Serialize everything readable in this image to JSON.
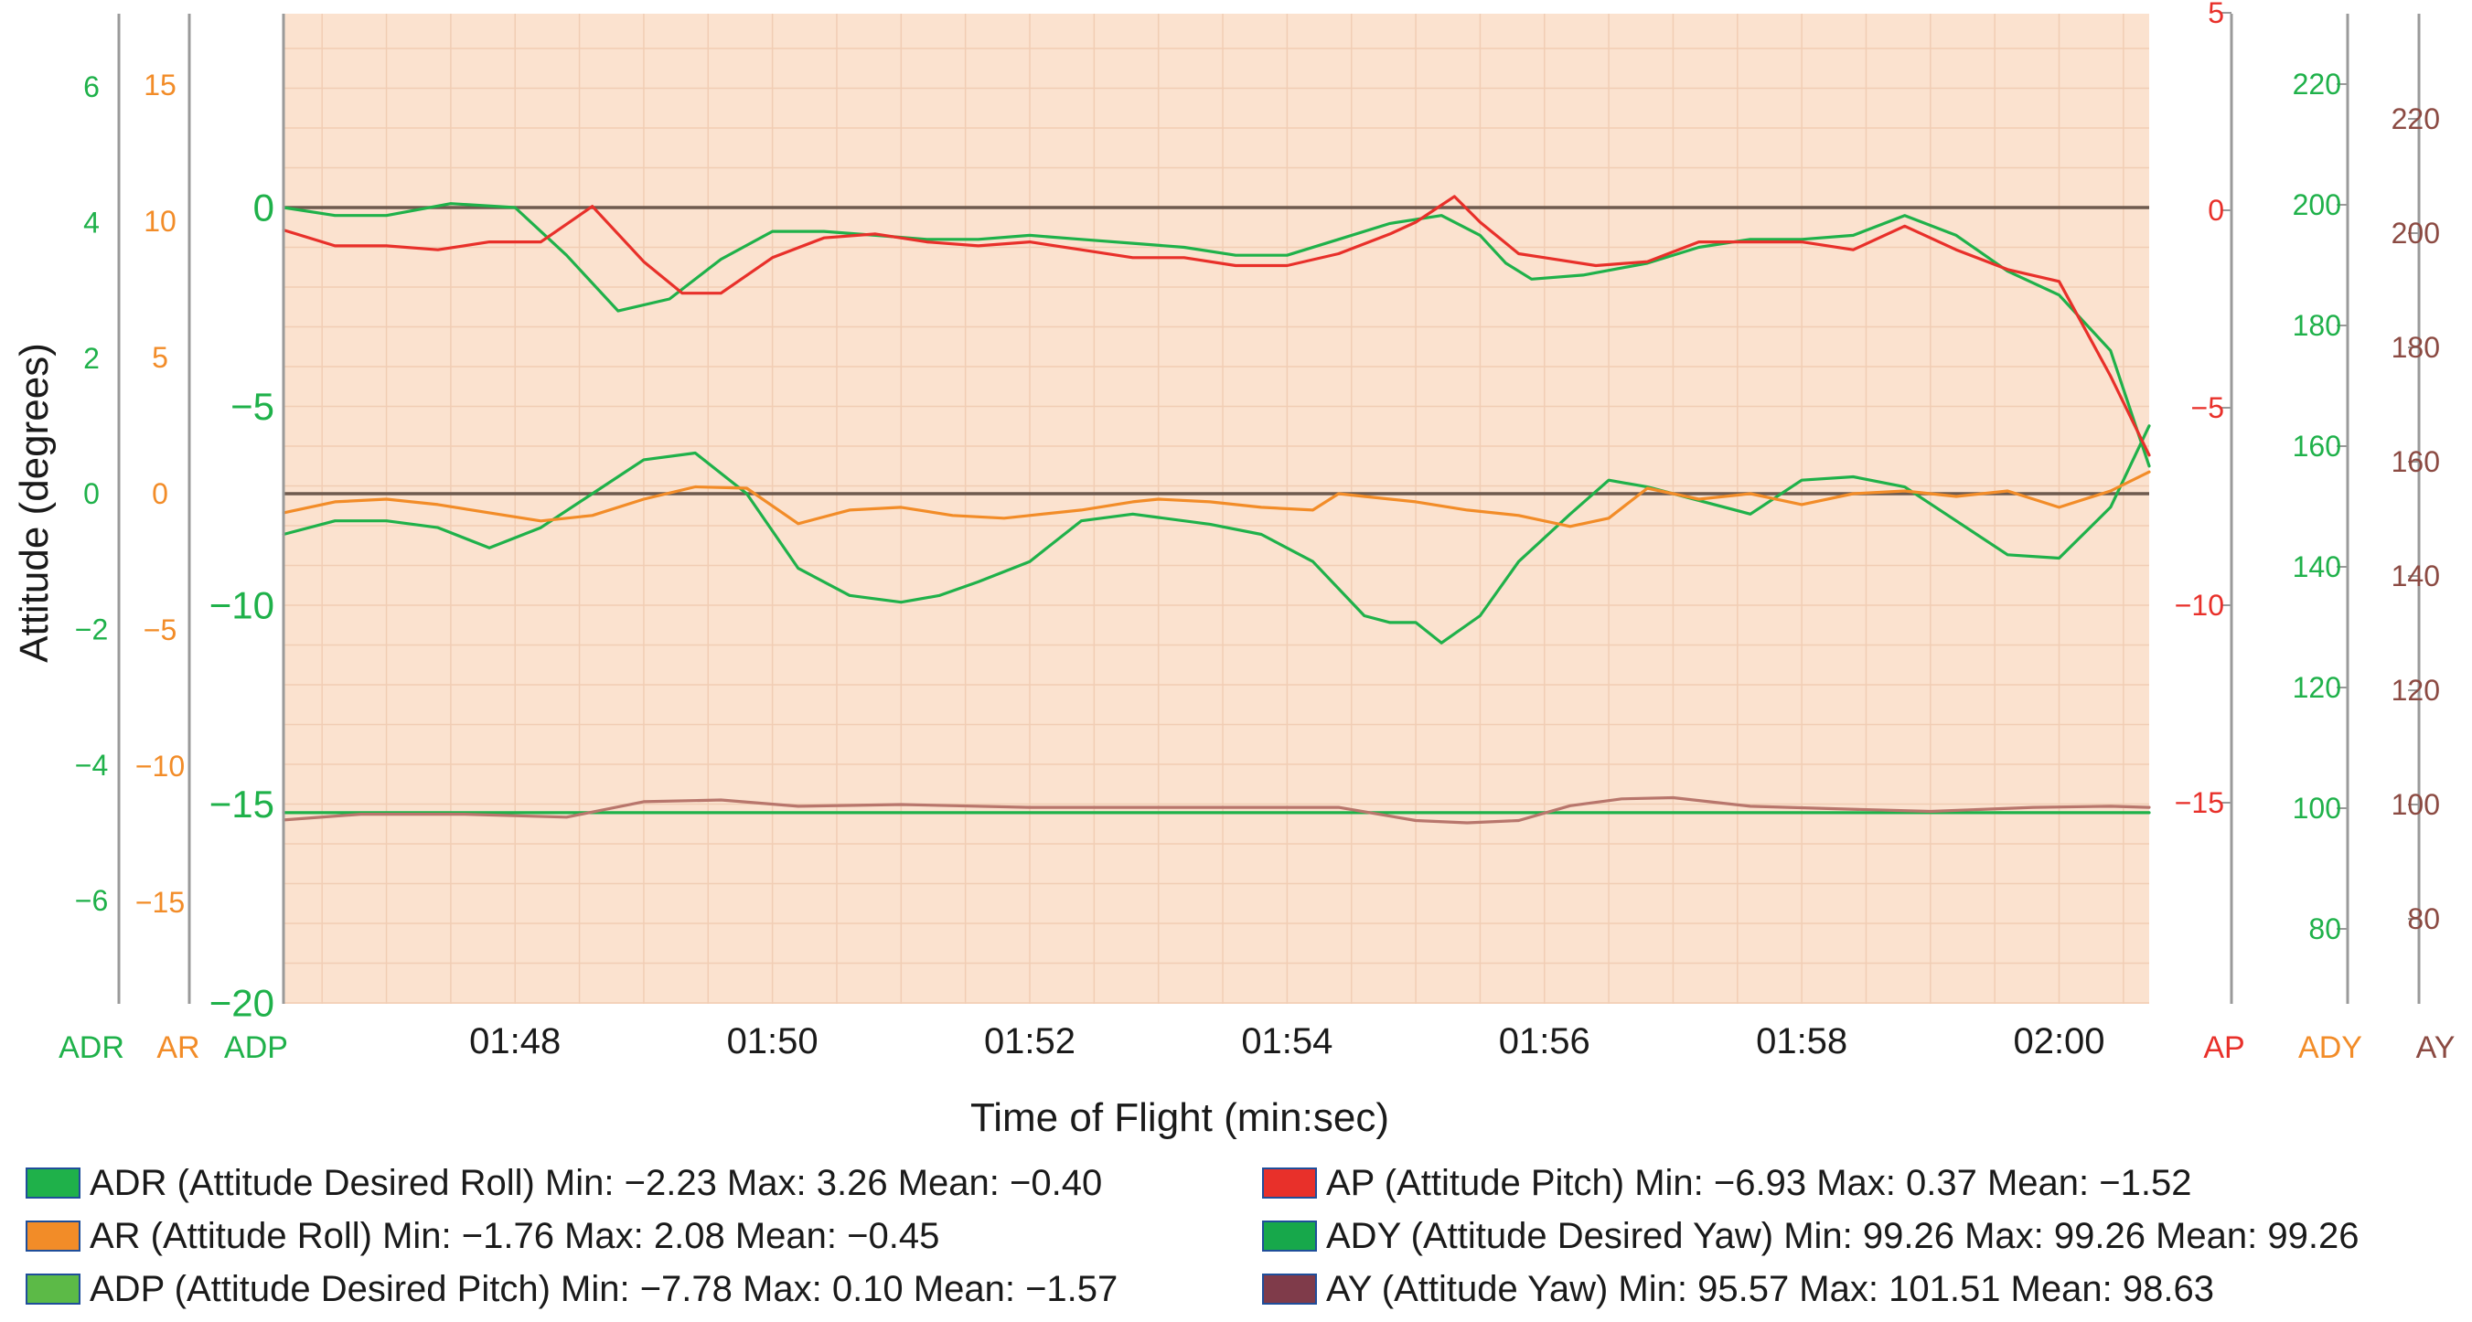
{
  "chart_data": {
    "type": "line",
    "ylabel": "Attitude (degrees)",
    "xlabel": "Time of Flight (min:sec)",
    "x_ticks": [
      "01:48",
      "01:50",
      "01:52",
      "01:54",
      "01:56",
      "01:58",
      "02:00"
    ],
    "x_tick_seconds": [
      108,
      110,
      112,
      114,
      116,
      118,
      120
    ],
    "xlim_seconds": [
      106.2,
      120.7
    ],
    "axes": [
      {
        "id": "ADR",
        "label": "ADR",
        "side": "left",
        "color": "#1fb14a",
        "ticks": [
          6,
          4,
          2,
          0,
          -2,
          -4,
          -6
        ],
        "tick_labels": [
          "6",
          "4",
          "2",
          "0",
          "−2",
          "−4",
          "−6"
        ]
      },
      {
        "id": "AR",
        "label": "AR",
        "side": "left",
        "color": "#f28c28",
        "ticks": [
          15,
          10,
          5,
          0,
          -5,
          -10,
          -15
        ],
        "tick_labels": [
          "15",
          "10",
          "5",
          "0",
          "−5",
          "−10",
          "−15"
        ]
      },
      {
        "id": "ADP",
        "label": "ADP",
        "side": "left",
        "color": "#1fb14a",
        "ticks": [
          0,
          -5,
          -10,
          -15,
          -20
        ],
        "tick_labels": [
          "0",
          "−5",
          "−10",
          "−15",
          "−20"
        ]
      },
      {
        "id": "AP",
        "label": "AP",
        "side": "right",
        "color": "#e8302a",
        "ticks": [
          5,
          0,
          -5,
          -10,
          -15
        ],
        "tick_labels": [
          "5",
          "0",
          "−5",
          "−10",
          "−15"
        ]
      },
      {
        "id": "ADY",
        "label": "ADY",
        "side": "right",
        "color": "#1fb14a",
        "ticks": [
          220,
          200,
          180,
          160,
          140,
          120,
          100,
          80
        ],
        "tick_labels": [
          "220",
          "200",
          "180",
          "160",
          "140",
          "120",
          "100",
          "80"
        ],
        "label_color": "#f28c28"
      },
      {
        "id": "AY",
        "label": "AY",
        "side": "right",
        "color": "#8b4a42",
        "ticks": [
          220,
          200,
          180,
          160,
          140,
          120,
          100,
          80
        ],
        "tick_labels": [
          "220",
          "200",
          "180",
          "160",
          "140",
          "120",
          "100",
          "80"
        ]
      }
    ],
    "series": [
      {
        "name": "ADR",
        "axis": "ADR",
        "color": "#1fb14a",
        "x": [
          106.2,
          106.6,
          107.0,
          107.4,
          107.8,
          108.2,
          108.6,
          109.0,
          109.4,
          109.8,
          110.2,
          110.6,
          111.0,
          111.3,
          111.6,
          112.0,
          112.4,
          112.8,
          113.0,
          113.4,
          113.8,
          114.2,
          114.6,
          114.8,
          115.0,
          115.2,
          115.5,
          115.8,
          116.2,
          116.5,
          116.8,
          117.2,
          117.6,
          118.0,
          118.4,
          118.8,
          119.2,
          119.6,
          120.0,
          120.4,
          120.7
        ],
        "y": [
          -0.6,
          -0.4,
          -0.4,
          -0.5,
          -0.8,
          -0.5,
          0.0,
          0.5,
          0.6,
          0.0,
          -1.1,
          -1.5,
          -1.6,
          -1.5,
          -1.3,
          -1.0,
          -0.4,
          -0.3,
          -0.35,
          -0.45,
          -0.6,
          -1.0,
          -1.8,
          -1.9,
          -1.9,
          -2.2,
          -1.8,
          -1.0,
          -0.3,
          0.2,
          0.1,
          -0.1,
          -0.3,
          0.2,
          0.25,
          0.1,
          -0.4,
          -0.9,
          -0.95,
          -0.2,
          1.0
        ]
      },
      {
        "name": "AR",
        "axis": "AR",
        "color": "#f28c28",
        "x": [
          106.2,
          106.6,
          107.0,
          107.4,
          107.8,
          108.2,
          108.6,
          109.0,
          109.4,
          109.8,
          110.2,
          110.6,
          111.0,
          111.4,
          111.8,
          112.0,
          112.4,
          112.8,
          113.0,
          113.4,
          113.8,
          114.2,
          114.4,
          114.6,
          115.0,
          115.4,
          115.8,
          116.2,
          116.5,
          116.8,
          117.2,
          117.6,
          118.0,
          118.4,
          118.8,
          119.2,
          119.6,
          120.0,
          120.4,
          120.7
        ],
        "y": [
          -0.7,
          -0.3,
          -0.2,
          -0.4,
          -0.7,
          -1.0,
          -0.8,
          -0.2,
          0.25,
          0.2,
          -1.1,
          -0.6,
          -0.5,
          -0.8,
          -0.9,
          -0.8,
          -0.6,
          -0.3,
          -0.2,
          -0.3,
          -0.5,
          -0.6,
          0.0,
          -0.1,
          -0.3,
          -0.6,
          -0.8,
          -1.2,
          -0.9,
          0.2,
          -0.2,
          0.0,
          -0.4,
          0.0,
          0.1,
          -0.1,
          0.1,
          -0.5,
          0.1,
          0.8
        ]
      },
      {
        "name": "ADP",
        "axis": "ADP",
        "color": "#1fb14a",
        "x": [
          106.2,
          106.6,
          107.0,
          107.5,
          108.0,
          108.4,
          108.8,
          109.2,
          109.6,
          110.0,
          110.4,
          110.8,
          111.2,
          111.6,
          112.0,
          112.4,
          112.8,
          113.2,
          113.6,
          114.0,
          114.4,
          114.8,
          115.2,
          115.5,
          115.7,
          115.9,
          116.3,
          116.8,
          117.2,
          117.6,
          118.0,
          118.4,
          118.8,
          119.2,
          119.6,
          120.0,
          120.4,
          120.7
        ],
        "y": [
          0.0,
          -0.2,
          -0.2,
          0.1,
          0.0,
          -1.2,
          -2.6,
          -2.3,
          -1.3,
          -0.6,
          -0.6,
          -0.7,
          -0.8,
          -0.8,
          -0.7,
          -0.8,
          -0.9,
          -1.0,
          -1.2,
          -1.2,
          -0.8,
          -0.4,
          -0.2,
          -0.7,
          -1.4,
          -1.8,
          -1.7,
          -1.4,
          -1.0,
          -0.8,
          -0.8,
          -0.7,
          -0.2,
          -0.7,
          -1.6,
          -2.2,
          -3.6,
          -6.5
        ]
      },
      {
        "name": "AP",
        "axis": "AP",
        "color": "#e8302a",
        "x": [
          106.2,
          106.6,
          107.0,
          107.4,
          107.8,
          108.2,
          108.6,
          109.0,
          109.3,
          109.6,
          110.0,
          110.4,
          110.8,
          111.2,
          111.6,
          112.0,
          112.4,
          112.8,
          113.2,
          113.6,
          114.0,
          114.4,
          114.8,
          115.0,
          115.3,
          115.5,
          115.8,
          116.0,
          116.4,
          116.8,
          117.2,
          117.6,
          118.0,
          118.4,
          118.8,
          119.2,
          119.6,
          120.0,
          120.4,
          120.7
        ],
        "y": [
          -0.5,
          -0.9,
          -0.9,
          -1.0,
          -0.8,
          -0.8,
          0.1,
          -1.3,
          -2.1,
          -2.1,
          -1.2,
          -0.7,
          -0.6,
          -0.8,
          -0.9,
          -0.8,
          -1.0,
          -1.2,
          -1.2,
          -1.4,
          -1.4,
          -1.1,
          -0.6,
          -0.3,
          0.35,
          -0.3,
          -1.1,
          -1.2,
          -1.4,
          -1.3,
          -0.8,
          -0.8,
          -0.8,
          -1.0,
          -0.4,
          -1.0,
          -1.5,
          -1.8,
          -4.2,
          -6.2
        ]
      },
      {
        "name": "ADY",
        "axis": "ADY",
        "color": "#1fb14a",
        "x": [
          106.2,
          120.7
        ],
        "y": [
          99.26,
          99.26
        ]
      },
      {
        "name": "AY",
        "axis": "AY",
        "color": "#b8766c",
        "x": [
          106.2,
          106.8,
          107.6,
          108.4,
          109.0,
          109.6,
          110.2,
          111.0,
          112.0,
          112.8,
          113.6,
          114.4,
          115.0,
          115.4,
          115.8,
          116.2,
          116.6,
          117.0,
          117.6,
          118.2,
          119.0,
          119.8,
          120.4,
          120.7
        ],
        "y": [
          97.3,
          98.3,
          98.3,
          97.8,
          100.5,
          100.8,
          99.7,
          100.0,
          99.5,
          99.5,
          99.5,
          99.5,
          97.2,
          96.8,
          97.2,
          99.8,
          101.0,
          101.2,
          99.7,
          99.3,
          98.8,
          99.5,
          99.7,
          99.5
        ]
      }
    ],
    "reference_lines": [
      {
        "axis": "ADP",
        "y": 0,
        "color": "#6e5a4e"
      },
      {
        "axis": "ADR",
        "y": 0,
        "color": "#6e5a4e"
      }
    ],
    "plot_background": "#fbe2cf",
    "legend": [
      {
        "text": "ADR (Attitude Desired Roll) Min: −2.23 Max: 3.26 Mean: −0.40",
        "color": "#1fb14a"
      },
      {
        "text": "AR (Attitude Roll) Min: −1.76 Max: 2.08 Mean: −0.45",
        "color": "#f28c28"
      },
      {
        "text": "ADP (Attitude Desired Pitch) Min: −7.78 Max: 0.10 Mean: −1.57",
        "color": "#5cba47"
      },
      {
        "text": "AP (Attitude Pitch) Min: −6.93 Max: 0.37 Mean: −1.52",
        "color": "#e8302a"
      },
      {
        "text": "ADY (Attitude Desired Yaw) Min: 99.26 Max: 99.26 Mean: 99.26",
        "color": "#17a84b"
      },
      {
        "text": "AY (Attitude Yaw) Min: 95.57 Max: 101.51 Mean: 98.63",
        "color": "#7f3b4a"
      }
    ]
  }
}
